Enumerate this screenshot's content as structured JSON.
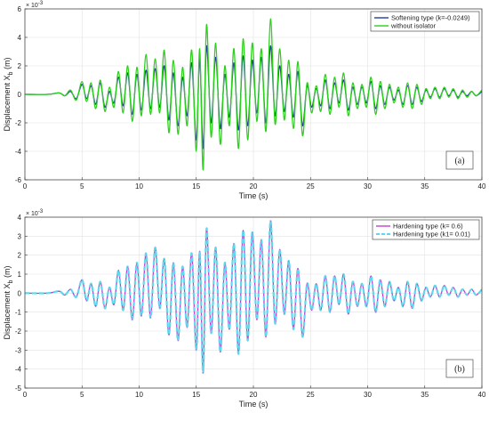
{
  "figure": {
    "background": "#ffffff"
  },
  "chart_data": [
    {
      "type": "line",
      "panel_label": "(a)",
      "xlabel": "Time (s)",
      "ylabel": "Displacement X",
      "ylabel_subscript": "b",
      "ylabel_unit": " (m)",
      "y_exponent_base": "× 10",
      "y_exponent_power": "-3",
      "xlim": [
        0,
        40
      ],
      "ylim": [
        -6,
        6
      ],
      "xticks": [
        0,
        5,
        10,
        15,
        20,
        25,
        30,
        35,
        40
      ],
      "yticks": [
        -6,
        -4,
        -2,
        0,
        2,
        4,
        6
      ],
      "grid": true,
      "legend_position": "top-right",
      "series": [
        {
          "name": "Softening type (k=-0.0249)",
          "color": "#1f3f9a",
          "x": [
            0,
            2,
            3,
            3.5,
            4,
            4.5,
            5,
            5.4,
            5.8,
            6.2,
            6.6,
            7,
            7.4,
            7.8,
            8.2,
            8.6,
            9,
            9.4,
            9.8,
            10.2,
            10.6,
            11,
            11.4,
            11.8,
            12.2,
            12.6,
            13,
            13.4,
            13.8,
            14.2,
            14.6,
            15,
            15.3,
            15.6,
            15.9,
            16.3,
            16.7,
            17.1,
            17.5,
            17.9,
            18.3,
            18.7,
            19.1,
            19.5,
            19.9,
            20.3,
            20.7,
            21.1,
            21.5,
            21.9,
            22.3,
            22.7,
            23.1,
            23.5,
            23.9,
            24.3,
            24.7,
            25.1,
            25.5,
            25.9,
            26.3,
            26.7,
            27.1,
            27.5,
            27.9,
            28.3,
            28.7,
            29.1,
            29.5,
            29.9,
            30.3,
            30.7,
            31.1,
            31.5,
            31.9,
            32.3,
            32.7,
            33.1,
            33.5,
            33.9,
            34.3,
            34.7,
            35.1,
            35.5,
            35.9,
            36.3,
            36.7,
            37.1,
            37.5,
            37.9,
            38.3,
            38.7,
            39.1,
            39.5,
            40
          ],
          "y": [
            0,
            0,
            0.1,
            -0.1,
            0.2,
            -0.3,
            0.7,
            -0.3,
            0.6,
            -0.7,
            0.8,
            -0.9,
            0.2,
            -0.6,
            1.2,
            -0.8,
            1.5,
            -1.4,
            1.4,
            -1.1,
            1.7,
            -1.0,
            1.8,
            -0.9,
            2.0,
            -1.8,
            1.5,
            -2.2,
            1.2,
            -1.5,
            2.2,
            -3.2,
            2.5,
            -3.8,
            3.4,
            -2.0,
            2.6,
            -2.4,
            1.4,
            -1.6,
            2.2,
            -2.5,
            2.7,
            -2.2,
            2.4,
            -1.3,
            2.6,
            -2.0,
            3.4,
            -1.5,
            2.0,
            -1.2,
            1.4,
            -1.6,
            1.6,
            -2.2,
            0.6,
            -0.9,
            0.4,
            -0.8,
            1.0,
            -1.0,
            0.8,
            -0.6,
            1.0,
            -1.1,
            0.5,
            -0.7,
            0.5,
            -0.6,
            0.9,
            -1.0,
            0.6,
            -0.7,
            0.5,
            -0.4,
            0.3,
            -0.7,
            0.6,
            -0.7,
            0.5,
            -0.5,
            0.3,
            -0.2,
            0.4,
            -0.2,
            0.4,
            -0.1,
            0.3,
            -0.2,
            0.2,
            -0.1,
            0.2,
            -0.1,
            0.2
          ]
        },
        {
          "name": "without isolator",
          "color": "#2bd11a",
          "x": [
            0,
            2,
            3,
            3.5,
            4,
            4.5,
            5,
            5.4,
            5.8,
            6.2,
            6.6,
            7,
            7.4,
            7.8,
            8.2,
            8.6,
            9,
            9.4,
            9.8,
            10.2,
            10.6,
            11,
            11.4,
            11.8,
            12.2,
            12.6,
            13,
            13.4,
            13.8,
            14.2,
            14.6,
            15,
            15.3,
            15.6,
            15.9,
            16.3,
            16.7,
            17.1,
            17.5,
            17.9,
            18.3,
            18.7,
            19.1,
            19.5,
            19.9,
            20.3,
            20.7,
            21.1,
            21.5,
            21.9,
            22.3,
            22.7,
            23.1,
            23.5,
            23.9,
            24.3,
            24.7,
            25.1,
            25.5,
            25.9,
            26.3,
            26.7,
            27.1,
            27.5,
            27.9,
            28.3,
            28.7,
            29.1,
            29.5,
            29.9,
            30.3,
            30.7,
            31.1,
            31.5,
            31.9,
            32.3,
            32.7,
            33.1,
            33.5,
            33.9,
            34.3,
            34.7,
            35.1,
            35.5,
            35.9,
            36.3,
            36.7,
            37.1,
            37.5,
            37.9,
            38.3,
            38.7,
            39.1,
            39.5,
            40
          ],
          "y": [
            0,
            0,
            0.1,
            -0.1,
            0.3,
            -0.4,
            0.9,
            -0.5,
            0.8,
            -1.0,
            1.0,
            -1.2,
            0.5,
            -0.9,
            1.6,
            -1.3,
            2.0,
            -1.9,
            1.9,
            -1.5,
            2.8,
            -1.4,
            2.5,
            -1.3,
            3.1,
            -2.7,
            2.4,
            -2.8,
            1.9,
            -2.2,
            3.1,
            -4.0,
            3.2,
            -5.3,
            4.9,
            -3.0,
            3.6,
            -3.5,
            2.0,
            -2.2,
            3.2,
            -3.8,
            3.9,
            -3.2,
            3.6,
            -1.9,
            3.2,
            -2.6,
            5.3,
            -2.1,
            3.2,
            -1.8,
            2.4,
            -2.4,
            2.3,
            -2.9,
            0.8,
            -1.3,
            0.6,
            -1.2,
            1.4,
            -1.4,
            1.2,
            -0.9,
            1.5,
            -1.5,
            0.8,
            -1.0,
            0.7,
            -0.9,
            1.2,
            -1.4,
            0.9,
            -1.0,
            0.7,
            -0.6,
            0.5,
            -0.9,
            0.8,
            -1.0,
            0.7,
            -0.7,
            0.4,
            -0.3,
            0.5,
            -0.3,
            0.5,
            -0.2,
            0.4,
            -0.3,
            0.3,
            -0.2,
            0.2,
            -0.1,
            0.3
          ]
        }
      ]
    },
    {
      "type": "line",
      "panel_label": "(b)",
      "xlabel": "Time (s)",
      "ylabel": "Displacement X",
      "ylabel_subscript": "b",
      "ylabel_unit": " (m)",
      "y_exponent_base": "× 10",
      "y_exponent_power": "-3",
      "xlim": [
        0,
        40
      ],
      "ylim": [
        -5,
        4
      ],
      "xticks": [
        0,
        5,
        10,
        15,
        20,
        25,
        30,
        35,
        40
      ],
      "yticks": [
        -5,
        -4,
        -3,
        -2,
        -1,
        0,
        1,
        2,
        3,
        4
      ],
      "grid": true,
      "legend_position": "top-right",
      "series": [
        {
          "name": "Hardening type (k= 0.6)",
          "color": "#c23fd0",
          "x": [
            0,
            2,
            3,
            3.5,
            4,
            4.5,
            5,
            5.4,
            5.8,
            6.2,
            6.6,
            7,
            7.4,
            7.8,
            8.2,
            8.6,
            9,
            9.4,
            9.8,
            10.2,
            10.6,
            11,
            11.4,
            11.8,
            12.2,
            12.6,
            13,
            13.4,
            13.8,
            14.2,
            14.6,
            15,
            15.3,
            15.6,
            15.9,
            16.3,
            16.7,
            17.1,
            17.5,
            17.9,
            18.3,
            18.7,
            19.1,
            19.5,
            19.9,
            20.3,
            20.7,
            21.1,
            21.5,
            21.9,
            22.3,
            22.7,
            23.1,
            23.5,
            23.9,
            24.3,
            24.7,
            25.1,
            25.5,
            25.9,
            26.3,
            26.7,
            27.1,
            27.5,
            27.9,
            28.3,
            28.7,
            29.1,
            29.5,
            29.9,
            30.3,
            30.7,
            31.1,
            31.5,
            31.9,
            32.3,
            32.7,
            33.1,
            33.5,
            33.9,
            34.3,
            34.7,
            35.1,
            35.5,
            35.9,
            36.3,
            36.7,
            37.1,
            37.5,
            37.9,
            38.3,
            38.7,
            39.1,
            39.5,
            40
          ],
          "y": [
            0,
            0,
            0.1,
            -0.1,
            0.2,
            -0.2,
            0.7,
            -0.4,
            0.5,
            -0.7,
            0.6,
            -0.8,
            0.3,
            -0.6,
            1.2,
            -0.9,
            1.4,
            -1.4,
            1.6,
            -1.2,
            2.1,
            -1.3,
            2.4,
            -0.8,
            1.8,
            -2.2,
            1.6,
            -2.5,
            1.4,
            -1.8,
            2.1,
            -3.0,
            2.2,
            -4.2,
            3.4,
            -2.1,
            2.4,
            -3.1,
            1.6,
            -1.9,
            2.6,
            -3.2,
            3.3,
            -2.5,
            3.2,
            -1.4,
            2.8,
            -2.3,
            3.8,
            -1.6,
            2.3,
            -1.1,
            1.7,
            -1.9,
            1.3,
            -2.3,
            0.5,
            -0.9,
            0.5,
            -0.9,
            0.9,
            -1.0,
            0.9,
            -0.6,
            1.0,
            -1.1,
            0.6,
            -0.7,
            0.5,
            -0.7,
            0.9,
            -1.0,
            0.7,
            -0.7,
            0.6,
            -0.4,
            0.3,
            -0.7,
            0.6,
            -0.8,
            0.5,
            -0.4,
            0.3,
            -0.2,
            0.4,
            -0.2,
            0.4,
            -0.1,
            0.3,
            -0.2,
            0.2,
            -0.1,
            0.2,
            -0.1,
            0.2
          ]
        },
        {
          "name": "Hardening type (k1= 0.01)",
          "color": "#5ed7ef",
          "dashed": true,
          "x": [
            0,
            2,
            3,
            3.5,
            4,
            4.5,
            5,
            5.4,
            5.8,
            6.2,
            6.6,
            7,
            7.4,
            7.8,
            8.2,
            8.6,
            9,
            9.4,
            9.8,
            10.2,
            10.6,
            11,
            11.4,
            11.8,
            12.2,
            12.6,
            13,
            13.4,
            13.8,
            14.2,
            14.6,
            15,
            15.3,
            15.6,
            15.9,
            16.3,
            16.7,
            17.1,
            17.5,
            17.9,
            18.3,
            18.7,
            19.1,
            19.5,
            19.9,
            20.3,
            20.7,
            21.1,
            21.5,
            21.9,
            22.3,
            22.7,
            23.1,
            23.5,
            23.9,
            24.3,
            24.7,
            25.1,
            25.5,
            25.9,
            26.3,
            26.7,
            27.1,
            27.5,
            27.9,
            28.3,
            28.7,
            29.1,
            29.5,
            29.9,
            30.3,
            30.7,
            31.1,
            31.5,
            31.9,
            32.3,
            32.7,
            33.1,
            33.5,
            33.9,
            34.3,
            34.7,
            35.1,
            35.5,
            35.9,
            36.3,
            36.7,
            37.1,
            37.5,
            37.9,
            38.3,
            38.7,
            39.1,
            39.5,
            40
          ],
          "y": [
            0,
            0,
            0.1,
            -0.1,
            0.2,
            -0.2,
            0.7,
            -0.4,
            0.5,
            -0.7,
            0.6,
            -0.8,
            0.3,
            -0.6,
            1.2,
            -0.9,
            1.4,
            -1.4,
            1.6,
            -1.2,
            2.1,
            -1.3,
            2.4,
            -0.8,
            1.8,
            -2.2,
            1.6,
            -2.5,
            1.4,
            -1.8,
            2.1,
            -3.0,
            2.2,
            -4.2,
            3.4,
            -2.1,
            2.4,
            -3.1,
            1.6,
            -1.9,
            2.6,
            -3.2,
            3.3,
            -2.5,
            3.2,
            -1.4,
            2.8,
            -2.3,
            3.8,
            -1.6,
            2.3,
            -1.1,
            1.7,
            -1.9,
            1.3,
            -2.3,
            0.5,
            -0.9,
            0.5,
            -0.9,
            0.9,
            -1.0,
            0.9,
            -0.6,
            1.0,
            -1.1,
            0.6,
            -0.7,
            0.5,
            -0.7,
            0.9,
            -1.0,
            0.7,
            -0.7,
            0.6,
            -0.4,
            0.3,
            -0.7,
            0.6,
            -0.8,
            0.5,
            -0.4,
            0.3,
            -0.2,
            0.4,
            -0.2,
            0.4,
            -0.1,
            0.3,
            -0.2,
            0.2,
            -0.1,
            0.2,
            -0.1,
            0.2
          ]
        }
      ]
    }
  ]
}
